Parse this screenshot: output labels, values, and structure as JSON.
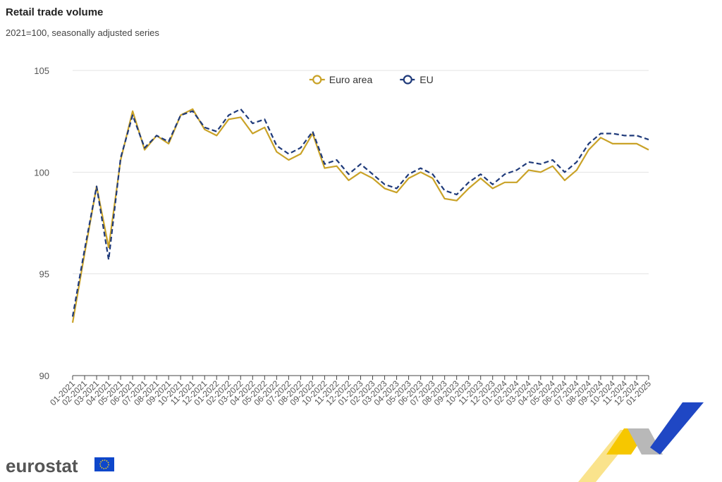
{
  "logo": "eurostat",
  "chart_data": {
    "type": "line",
    "title": "Retail trade volume",
    "subtitle": "2021=100, seasonally adjusted series",
    "categories": [
      "01-2021",
      "02-2021",
      "03-2021",
      "04-2021",
      "05-2021",
      "06-2021",
      "07-2021",
      "08-2021",
      "09-2021",
      "10-2021",
      "11-2021",
      "12-2021",
      "01-2022",
      "02-2022",
      "03-2022",
      "04-2022",
      "05-2022",
      "06-2022",
      "07-2022",
      "08-2022",
      "09-2022",
      "10-2022",
      "11-2022",
      "12-2022",
      "01-2023",
      "02-2023",
      "03-2023",
      "04-2023",
      "05-2023",
      "06-2023",
      "07-2023",
      "08-2023",
      "09-2023",
      "10-2023",
      "11-2023",
      "12-2023",
      "01-2024",
      "02-2024",
      "03-2024",
      "04-2024",
      "05-2024",
      "06-2024",
      "07-2024",
      "08-2024",
      "09-2024",
      "10-2024",
      "11-2024",
      "12-2024",
      "01-2025"
    ],
    "series": [
      {
        "name": "Euro area",
        "color": "#c9a227",
        "dashed": false,
        "values": [
          92.6,
          96.0,
          99.3,
          96.3,
          100.6,
          103.0,
          101.1,
          101.8,
          101.4,
          102.8,
          103.1,
          102.1,
          101.8,
          102.6,
          102.7,
          101.9,
          102.2,
          101.0,
          100.6,
          100.9,
          101.9,
          100.2,
          100.3,
          99.6,
          100.0,
          99.7,
          99.2,
          99.0,
          99.7,
          100.0,
          99.7,
          98.7,
          98.6,
          99.2,
          99.7,
          99.2,
          99.5,
          99.5,
          100.1,
          100.0,
          100.3,
          99.6,
          100.1,
          101.1,
          101.7,
          101.4,
          101.4,
          101.4,
          101.1
        ]
      },
      {
        "name": "EU",
        "color": "#1f3a7a",
        "dashed": true,
        "values": [
          92.9,
          96.2,
          99.3,
          95.7,
          100.7,
          102.8,
          101.2,
          101.8,
          101.5,
          102.8,
          103.0,
          102.2,
          102.0,
          102.8,
          103.1,
          102.4,
          102.6,
          101.3,
          100.9,
          101.2,
          102.0,
          100.4,
          100.6,
          99.9,
          100.4,
          99.9,
          99.4,
          99.2,
          99.9,
          100.2,
          99.9,
          99.1,
          98.9,
          99.5,
          99.9,
          99.4,
          99.9,
          100.1,
          100.5,
          100.4,
          100.6,
          100.0,
          100.5,
          101.4,
          101.9,
          101.9,
          101.8,
          101.8,
          101.6
        ]
      }
    ],
    "ylim": [
      90,
      105
    ],
    "yticks": [
      90,
      95,
      100,
      105
    ],
    "grid": true,
    "legend": "top"
  }
}
